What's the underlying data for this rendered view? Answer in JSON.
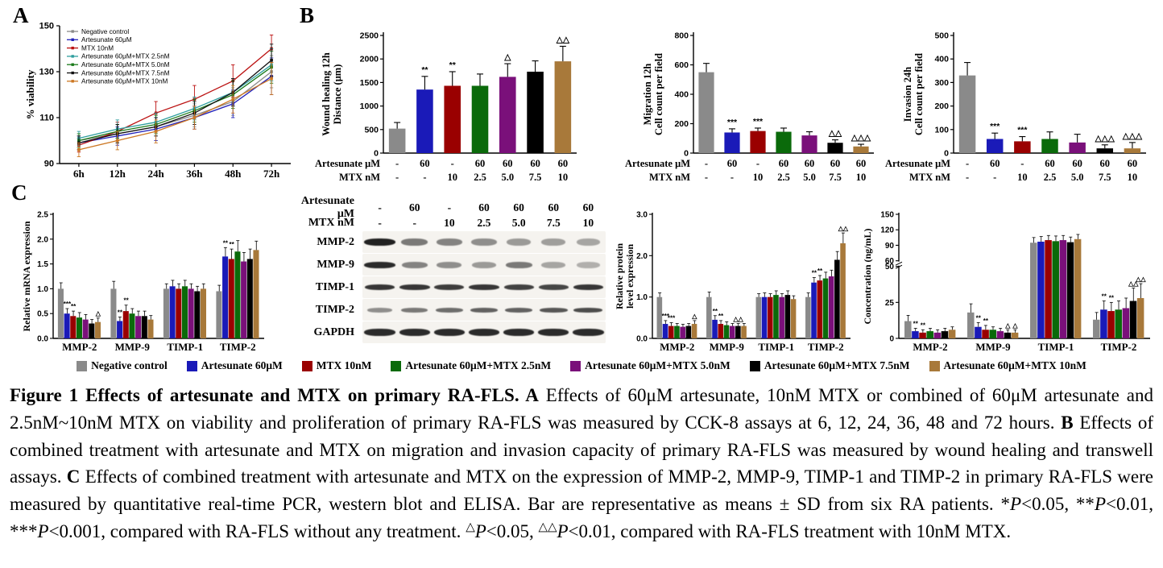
{
  "panels": {
    "a": "A",
    "b": "B",
    "c": "C"
  },
  "palette": [
    "#8a8a8a",
    "#1a1ab8",
    "#9a0000",
    "#0a6a0a",
    "#7a107a",
    "#000000",
    "#a8793a"
  ],
  "legend": {
    "items": [
      {
        "label": "Negative control",
        "color": "#8a8a8a"
      },
      {
        "label": "Artesunate 60μM",
        "color": "#1a1ab8"
      },
      {
        "label": "MTX 10nM",
        "color": "#9a0000"
      },
      {
        "label": "Artesunate 60μM+MTX 2.5nM",
        "color": "#0a6a0a"
      },
      {
        "label": "Artesunate 60μM+MTX 5.0nM",
        "color": "#7a107a"
      },
      {
        "label": "Artesunate 60μM+MTX 7.5nM",
        "color": "#000000"
      },
      {
        "label": "Artesunate 60μM+MTX 10nM",
        "color": "#a8793a"
      }
    ]
  },
  "chart_data": [
    {
      "id": "viability",
      "type": "line",
      "ylabel_lines": [
        "% viability"
      ],
      "ylim": [
        90,
        150
      ],
      "yticks": [
        90,
        110,
        130,
        150
      ],
      "ytick_labels": [
        "90",
        "110",
        "130",
        "150"
      ],
      "x_ticklabels": [
        "6h",
        "12h",
        "24h",
        "36h",
        "48h",
        "72h"
      ],
      "series": [
        {
          "name": "Negative control",
          "color": "#8a8a8a",
          "values": [
            100,
            103,
            106,
            111,
            117,
            130
          ],
          "errors": [
            3,
            4,
            4,
            5,
            6,
            7
          ]
        },
        {
          "name": "Artesunate 60μM",
          "color": "#2222bb",
          "values": [
            99,
            102,
            105,
            110,
            116,
            128
          ],
          "errors": [
            3,
            4,
            5,
            5,
            6,
            8
          ]
        },
        {
          "name": "MTX 10nM",
          "color": "#bb1111",
          "values": [
            98,
            104,
            112,
            118,
            126,
            140
          ],
          "errors": [
            3,
            4,
            5,
            6,
            7,
            6
          ]
        },
        {
          "name": "Artesunate 60μM+MTX 2.5nM",
          "color": "#2e9e9e",
          "values": [
            101,
            105,
            108,
            114,
            121,
            133
          ],
          "errors": [
            3,
            4,
            4,
            5,
            6,
            7
          ]
        },
        {
          "name": "Artesunate 60μM+MTX 5.0nM",
          "color": "#1a7a1a",
          "values": [
            100,
            104,
            107,
            113,
            120,
            132
          ],
          "errors": [
            3,
            3,
            4,
            5,
            6,
            7
          ]
        },
        {
          "name": "Artesunate 60μM+MTX 7.5nM",
          "color": "#111111",
          "values": [
            99,
            103,
            106,
            112,
            121,
            135
          ],
          "errors": [
            3,
            4,
            4,
            5,
            6,
            7
          ]
        },
        {
          "name": "Artesunate 60μM+MTX 10nM",
          "color": "#cc7722",
          "values": [
            96,
            100,
            104,
            110,
            118,
            127
          ],
          "errors": [
            3,
            4,
            5,
            5,
            6,
            7
          ]
        }
      ]
    },
    {
      "id": "wound_healing",
      "type": "bar",
      "ylabel_lines": [
        "Wound healing 12h",
        "Distance (μm)"
      ],
      "ylim": [
        0,
        2500
      ],
      "yticks": [
        0,
        500,
        1000,
        1500,
        2000,
        2500
      ],
      "ytick_labels": [
        "0",
        "500",
        "1000",
        "1500",
        "2000",
        "2500"
      ],
      "values": [
        520,
        1350,
        1430,
        1430,
        1620,
        1730,
        1950
      ],
      "errors": [
        130,
        280,
        300,
        250,
        280,
        230,
        320
      ],
      "sig": [
        "",
        "**",
        "**",
        "",
        "△",
        "",
        "△△"
      ],
      "x_rows": [
        {
          "label": "Artesunate μM",
          "values": [
            "-",
            "60",
            "-",
            "60",
            "60",
            "60",
            "60"
          ]
        },
        {
          "label": "MTX nM",
          "values": [
            "-",
            "-",
            "10",
            "2.5",
            "5.0",
            "7.5",
            "10"
          ]
        }
      ]
    },
    {
      "id": "migration",
      "type": "bar",
      "ylabel_lines": [
        "Migration 12h",
        "Cell count per field"
      ],
      "ylim": [
        0,
        800
      ],
      "yticks": [
        0,
        200,
        400,
        600,
        800
      ],
      "ytick_labels": [
        "0",
        "200",
        "400",
        "600",
        "800"
      ],
      "values": [
        550,
        140,
        150,
        145,
        120,
        70,
        45
      ],
      "errors": [
        60,
        25,
        20,
        25,
        25,
        20,
        15
      ],
      "sig": [
        "",
        "***",
        "***",
        "",
        "",
        "△△",
        "△△△"
      ],
      "x_rows": [
        {
          "label": "Artesunate μM",
          "values": [
            "-",
            "60",
            "-",
            "60",
            "60",
            "60",
            "60"
          ]
        },
        {
          "label": "MTX nM",
          "values": [
            "-",
            "-",
            "10",
            "2.5",
            "5.0",
            "7.5",
            "10"
          ]
        }
      ]
    },
    {
      "id": "invasion",
      "type": "bar",
      "ylabel_lines": [
        "Invasion 24h",
        "Cell count per field"
      ],
      "ylim": [
        0,
        500
      ],
      "yticks": [
        0,
        100,
        200,
        300,
        400,
        500
      ],
      "ytick_labels": [
        "0",
        "100",
        "200",
        "300",
        "400",
        "500"
      ],
      "values": [
        330,
        60,
        50,
        60,
        45,
        20,
        20
      ],
      "errors": [
        55,
        25,
        20,
        30,
        35,
        15,
        25
      ],
      "sig": [
        "",
        "***",
        "***",
        "",
        "",
        "△△△",
        "△△△"
      ],
      "x_rows": [
        {
          "label": "Artesunate μM",
          "values": [
            "-",
            "60",
            "-",
            "60",
            "60",
            "60",
            "60"
          ]
        },
        {
          "label": "MTX nM",
          "values": [
            "-",
            "-",
            "10",
            "2.5",
            "5.0",
            "7.5",
            "10"
          ]
        }
      ]
    },
    {
      "id": "mrna",
      "type": "grouped_bar",
      "ylabel_lines": [
        "Relative mRNA expression"
      ],
      "ylim": [
        0,
        2.5
      ],
      "yticks": [
        0,
        0.5,
        1.0,
        1.5,
        2.0,
        2.5
      ],
      "ytick_labels": [
        "0.0",
        "0.5",
        "1.0",
        "1.5",
        "2.0",
        "2.5"
      ],
      "categories": [
        "MMP-2",
        "MMP-9",
        "TIMP-1",
        "TIMP-2"
      ],
      "series_values": [
        [
          1.0,
          0.5,
          0.45,
          0.42,
          0.38,
          0.3,
          0.33
        ],
        [
          1.0,
          0.35,
          0.55,
          0.5,
          0.45,
          0.45,
          0.38
        ],
        [
          1.0,
          1.05,
          1.0,
          1.05,
          1.0,
          0.95,
          1.0
        ],
        [
          0.95,
          1.65,
          1.6,
          1.75,
          1.55,
          1.6,
          1.78
        ]
      ],
      "errors": [
        [
          0.12,
          0.1,
          0.1,
          0.1,
          0.1,
          0.08,
          0.08
        ],
        [
          0.15,
          0.08,
          0.12,
          0.1,
          0.1,
          0.1,
          0.08
        ],
        [
          0.1,
          0.12,
          0.1,
          0.12,
          0.1,
          0.1,
          0.1
        ],
        [
          0.12,
          0.18,
          0.2,
          0.22,
          0.18,
          0.2,
          0.18
        ]
      ],
      "sig": [
        [
          "",
          "***",
          "**",
          "",
          "",
          "",
          "△"
        ],
        [
          "",
          "**",
          "**",
          "",
          "",
          "",
          ""
        ],
        [
          "",
          "",
          "",
          "",
          "",
          "",
          ""
        ],
        [
          "",
          "**",
          "**",
          "",
          "",
          "",
          ""
        ]
      ]
    },
    {
      "id": "western_blot",
      "type": "blot",
      "header_rows": [
        {
          "label": "Artesunate μM",
          "values": [
            "-",
            "60",
            "-",
            "60",
            "60",
            "60",
            "60"
          ]
        },
        {
          "label": "MTX nM",
          "values": [
            "-",
            "-",
            "10",
            "2.5",
            "5.0",
            "7.5",
            "10"
          ]
        }
      ],
      "rows": [
        {
          "label": "MMP-2",
          "intensities": [
            0.95,
            0.55,
            0.5,
            0.45,
            0.4,
            0.38,
            0.35
          ]
        },
        {
          "label": "MMP-9",
          "intensities": [
            0.9,
            0.5,
            0.45,
            0.4,
            0.55,
            0.35,
            0.3
          ]
        },
        {
          "label": "TIMP-1",
          "intensities": [
            0.85,
            0.85,
            0.82,
            0.85,
            0.8,
            0.78,
            0.85
          ]
        },
        {
          "label": "TIMP-2",
          "intensities": [
            0.45,
            0.55,
            0.6,
            0.65,
            0.65,
            0.7,
            0.75
          ]
        },
        {
          "label": "GAPDH",
          "intensities": [
            0.9,
            0.9,
            0.9,
            0.9,
            0.9,
            0.9,
            0.9
          ]
        }
      ]
    },
    {
      "id": "protein",
      "type": "grouped_bar",
      "ylabel_lines": [
        "Relative protein",
        "level expression"
      ],
      "ylim": [
        0,
        3.0
      ],
      "yticks": [
        0,
        1.0,
        2.0,
        3.0
      ],
      "ytick_labels": [
        "0.0",
        "1.0",
        "2.0",
        "3.0"
      ],
      "categories": [
        "MMP-2",
        "MMP-9",
        "TIMP-1",
        "TIMP-2"
      ],
      "series_values": [
        [
          1.0,
          0.35,
          0.3,
          0.3,
          0.28,
          0.3,
          0.35
        ],
        [
          1.0,
          0.45,
          0.35,
          0.32,
          0.3,
          0.3,
          0.3
        ],
        [
          1.0,
          1.0,
          1.0,
          1.05,
          1.0,
          1.05,
          0.95
        ],
        [
          1.0,
          1.35,
          1.4,
          1.45,
          1.5,
          1.9,
          2.3
        ]
      ],
      "errors": [
        [
          0.1,
          0.08,
          0.08,
          0.06,
          0.06,
          0.06,
          0.08
        ],
        [
          0.12,
          0.1,
          0.08,
          0.08,
          0.06,
          0.06,
          0.06
        ],
        [
          0.08,
          0.1,
          0.08,
          0.1,
          0.08,
          0.1,
          0.08
        ],
        [
          0.1,
          0.12,
          0.12,
          0.15,
          0.15,
          0.2,
          0.25
        ]
      ],
      "sig": [
        [
          "",
          "***",
          "***",
          "",
          "",
          "",
          "△"
        ],
        [
          "",
          "**",
          "**",
          "",
          "",
          "△△",
          ""
        ],
        [
          "",
          "",
          "",
          "",
          "",
          "",
          ""
        ],
        [
          "",
          "**",
          "**",
          "",
          "",
          "",
          "△△"
        ]
      ]
    },
    {
      "id": "elisa",
      "type": "grouped_bar_broken",
      "ylabel_lines": [
        "Concentration (ng/mL)"
      ],
      "ylim": [
        0,
        150
      ],
      "lower_ticks": [
        0,
        25,
        50
      ],
      "lower_tick_labels": [
        "0",
        "25",
        "50"
      ],
      "upper_ticks": [
        60,
        90,
        120,
        150
      ],
      "upper_tick_labels": [
        "60",
        "90",
        "120",
        "150"
      ],
      "categories": [
        "MMP-2",
        "MMP-9",
        "TIMP-1",
        "TIMP-2"
      ],
      "series_values": [
        [
          12,
          5,
          4,
          5,
          4,
          5,
          6
        ],
        [
          18,
          8,
          6,
          6,
          5,
          4,
          4
        ],
        [
          95,
          97,
          100,
          98,
          100,
          96,
          102
        ],
        [
          13,
          20,
          19,
          20,
          21,
          26,
          28
        ]
      ],
      "errors": [
        [
          4,
          2,
          2,
          2,
          2,
          2,
          2
        ],
        [
          6,
          3,
          3,
          2,
          2,
          2,
          2
        ],
        [
          10,
          10,
          9,
          10,
          9,
          10,
          9
        ],
        [
          5,
          6,
          6,
          6,
          7,
          9,
          10
        ]
      ],
      "sig": [
        [
          "",
          "**",
          "**",
          "",
          "",
          "",
          ""
        ],
        [
          "",
          "**",
          "**",
          "",
          "",
          "△",
          "△"
        ],
        [
          "",
          "",
          "",
          "",
          "",
          "",
          ""
        ],
        [
          "",
          "**",
          "**",
          "",
          "",
          "△△",
          "△△"
        ]
      ]
    }
  ],
  "caption": {
    "segments": [
      {
        "t": "Figure 1 Effects of artesunate and MTX on primary RA-FLS. ",
        "b": true
      },
      {
        "t": "A",
        "b": true
      },
      {
        "t": " Effects of 60μM artesunate, 10nM MTX or combined of 60μM artesunate and 2.5nM~10nM MTX on viability and proliferation of primary RA-FLS was measured by CCK-8 assays at 6, 12, 24, 36, 48 and 72 hours. "
      },
      {
        "t": "B",
        "b": true
      },
      {
        "t": " Effects of combined treatment with artesunate and MTX on migration and invasion capacity of primary RA-FLS was measured by wound healing and transwell assays. "
      },
      {
        "t": "C",
        "b": true
      },
      {
        "t": " Effects of combined treatment with artesunate and MTX on the expression of MMP-2, MMP-9, TIMP-1 and TIMP-2 in primary RA-FLS were measured by quantitative real-time PCR, western blot and ELISA. Bar are representative as means ± SD from six RA patients. *"
      },
      {
        "t": "P",
        "i": true
      },
      {
        "t": "<0.05, **"
      },
      {
        "t": "P",
        "i": true
      },
      {
        "t": "<0.01, ***"
      },
      {
        "t": "P",
        "i": true
      },
      {
        "t": "<0.001, compared with RA-FLS without any treatment. "
      },
      {
        "t": "△",
        "sup": true
      },
      {
        "t": "P",
        "i": true
      },
      {
        "t": "<0.05, "
      },
      {
        "t": "△△",
        "sup": true
      },
      {
        "t": "P",
        "i": true
      },
      {
        "t": "<0.01, compared with RA-FLS treatment with 10nM MTX."
      }
    ]
  }
}
